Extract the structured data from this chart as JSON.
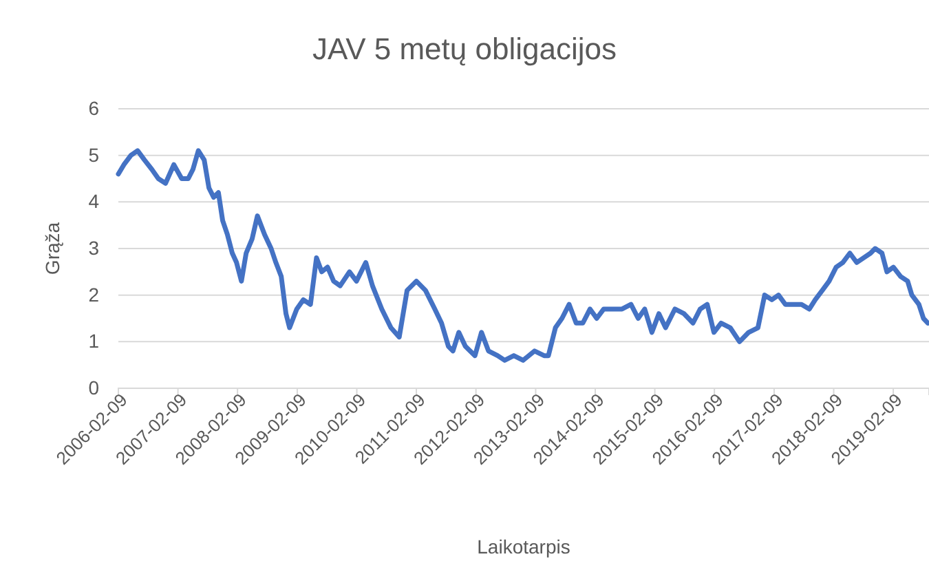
{
  "chart_data": {
    "type": "line",
    "title": "JAV 5 metų obligacijos",
    "xlabel": "Laikotarpis",
    "ylabel": "Grąža",
    "ylim": [
      0,
      6
    ],
    "yticks": [
      0,
      1,
      2,
      3,
      4,
      5,
      6
    ],
    "xlim": [
      "2006-02-09",
      "2019-09-16"
    ],
    "xticks": [
      "2006-02-09",
      "2007-02-09",
      "2008-02-09",
      "2009-02-09",
      "2010-02-09",
      "2011-02-09",
      "2012-02-09",
      "2013-02-09",
      "2014-02-09",
      "2015-02-09",
      "2016-02-09",
      "2017-02-09",
      "2018-02-09",
      "2019-02-09"
    ],
    "grid": "y",
    "line_style": "solid",
    "series": [
      {
        "color": "#4472c4",
        "x": [
          "2006-02-09",
          "2006-03-15",
          "2006-04-27",
          "2006-06-07",
          "2006-07-19",
          "2006-09-02",
          "2006-10-12",
          "2006-11-25",
          "2007-01-15",
          "2007-03-04",
          "2007-04-13",
          "2007-05-12",
          "2007-06-14",
          "2007-07-20",
          "2007-08-18",
          "2007-09-16",
          "2007-10-15",
          "2007-11-10",
          "2007-12-09",
          "2008-01-08",
          "2008-02-03",
          "2008-03-04",
          "2008-04-02",
          "2008-05-08",
          "2008-06-10",
          "2008-07-24",
          "2008-09-02",
          "2008-10-01",
          "2008-11-03",
          "2008-12-02",
          "2008-12-24",
          "2009-02-06",
          "2009-03-18",
          "2009-05-01",
          "2009-06-07",
          "2009-07-09",
          "2009-08-14",
          "2009-09-20",
          "2009-10-30",
          "2009-12-26",
          "2010-02-07",
          "2010-04-05",
          "2010-05-16",
          "2010-07-12",
          "2010-09-06",
          "2010-10-27",
          "2010-12-14",
          "2011-02-09",
          "2011-04-06",
          "2011-06-02",
          "2011-07-13",
          "2011-08-24",
          "2011-09-21",
          "2011-10-27",
          "2011-12-06",
          "2012-02-03",
          "2012-03-14",
          "2012-04-26",
          "2012-06-21",
          "2012-08-03",
          "2012-09-28",
          "2012-11-24",
          "2013-02-02",
          "2013-04-02",
          "2013-04-28",
          "2013-06-10",
          "2013-07-20",
          "2013-09-02",
          "2013-10-15",
          "2013-11-25",
          "2014-01-08",
          "2014-02-18",
          "2014-04-02",
          "2014-05-27",
          "2014-07-23",
          "2014-09-16",
          "2014-10-30",
          "2014-12-09",
          "2015-01-22",
          "2015-03-06",
          "2015-04-16",
          "2015-06-12",
          "2015-08-07",
          "2015-10-01",
          "2015-11-14",
          "2015-12-27",
          "2016-02-06",
          "2016-03-21",
          "2016-05-16",
          "2016-07-12",
          "2016-09-06",
          "2016-11-02",
          "2016-12-13",
          "2017-01-26",
          "2017-03-08",
          "2017-04-19",
          "2017-06-14",
          "2017-07-27",
          "2017-09-13",
          "2017-10-19",
          "2017-12-01",
          "2018-01-12",
          "2018-02-24",
          "2018-04-06",
          "2018-05-19",
          "2018-06-30",
          "2018-08-11",
          "2018-09-23",
          "2018-10-21",
          "2018-12-02",
          "2019-01-01",
          "2019-02-10",
          "2019-03-26",
          "2019-05-08",
          "2019-06-03",
          "2019-07-16",
          "2019-08-13",
          "2019-09-09"
        ],
        "values": [
          4.6,
          4.8,
          5.0,
          5.1,
          4.9,
          4.7,
          4.5,
          4.4,
          4.8,
          4.5,
          4.5,
          4.7,
          5.1,
          4.9,
          4.3,
          4.1,
          4.2,
          3.6,
          3.3,
          2.9,
          2.7,
          2.3,
          2.9,
          3.2,
          3.7,
          3.3,
          3.0,
          2.7,
          2.4,
          1.6,
          1.3,
          1.7,
          1.9,
          1.8,
          2.8,
          2.5,
          2.6,
          2.3,
          2.2,
          2.5,
          2.3,
          2.7,
          2.2,
          1.7,
          1.3,
          1.1,
          2.1,
          2.3,
          2.1,
          1.7,
          1.4,
          0.9,
          0.8,
          1.2,
          0.9,
          0.7,
          1.2,
          0.8,
          0.7,
          0.6,
          0.7,
          0.6,
          0.8,
          0.7,
          0.7,
          1.3,
          1.5,
          1.8,
          1.4,
          1.4,
          1.7,
          1.5,
          1.7,
          1.7,
          1.7,
          1.8,
          1.5,
          1.7,
          1.2,
          1.6,
          1.3,
          1.7,
          1.6,
          1.4,
          1.7,
          1.8,
          1.2,
          1.4,
          1.3,
          1.0,
          1.2,
          1.3,
          2.0,
          1.9,
          2.0,
          1.8,
          1.8,
          1.8,
          1.7,
          1.9,
          2.1,
          2.3,
          2.6,
          2.7,
          2.9,
          2.7,
          2.8,
          2.9,
          3.0,
          2.9,
          2.5,
          2.6,
          2.4,
          2.3,
          2.0,
          1.8,
          1.5,
          1.4
        ]
      }
    ]
  }
}
